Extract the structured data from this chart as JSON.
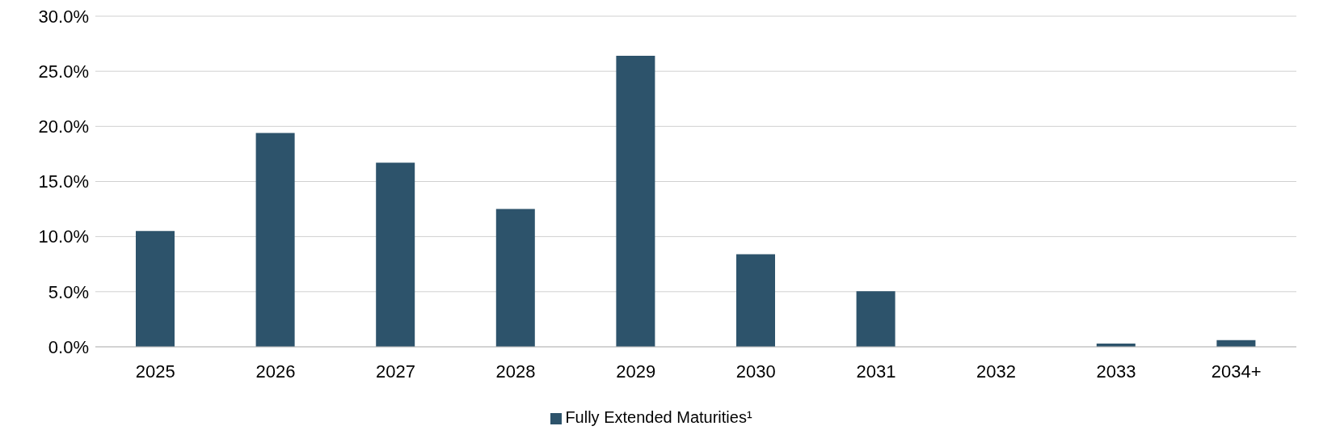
{
  "chart_data": {
    "type": "bar",
    "categories": [
      "2025",
      "2026",
      "2027",
      "2028",
      "2029",
      "2030",
      "2031",
      "2032",
      "2033",
      "2034+"
    ],
    "series": [
      {
        "name": "Fully Extended Maturities¹",
        "color": "#2d536b",
        "values": [
          10.5,
          19.4,
          16.7,
          12.5,
          26.4,
          8.4,
          5.05,
          0,
          0.3,
          0.6
        ]
      }
    ],
    "ylim": [
      0,
      30
    ],
    "yticks": [
      {
        "value": 0,
        "label": "0.0%"
      },
      {
        "value": 5,
        "label": "5.0%"
      },
      {
        "value": 10,
        "label": "10.0%"
      },
      {
        "value": 15,
        "label": "15.0%"
      },
      {
        "value": 20,
        "label": "20.0%"
      },
      {
        "value": 25,
        "label": "25.0%"
      },
      {
        "value": 30,
        "label": "30.0%"
      }
    ],
    "grid": "y",
    "legend": "bottom"
  }
}
